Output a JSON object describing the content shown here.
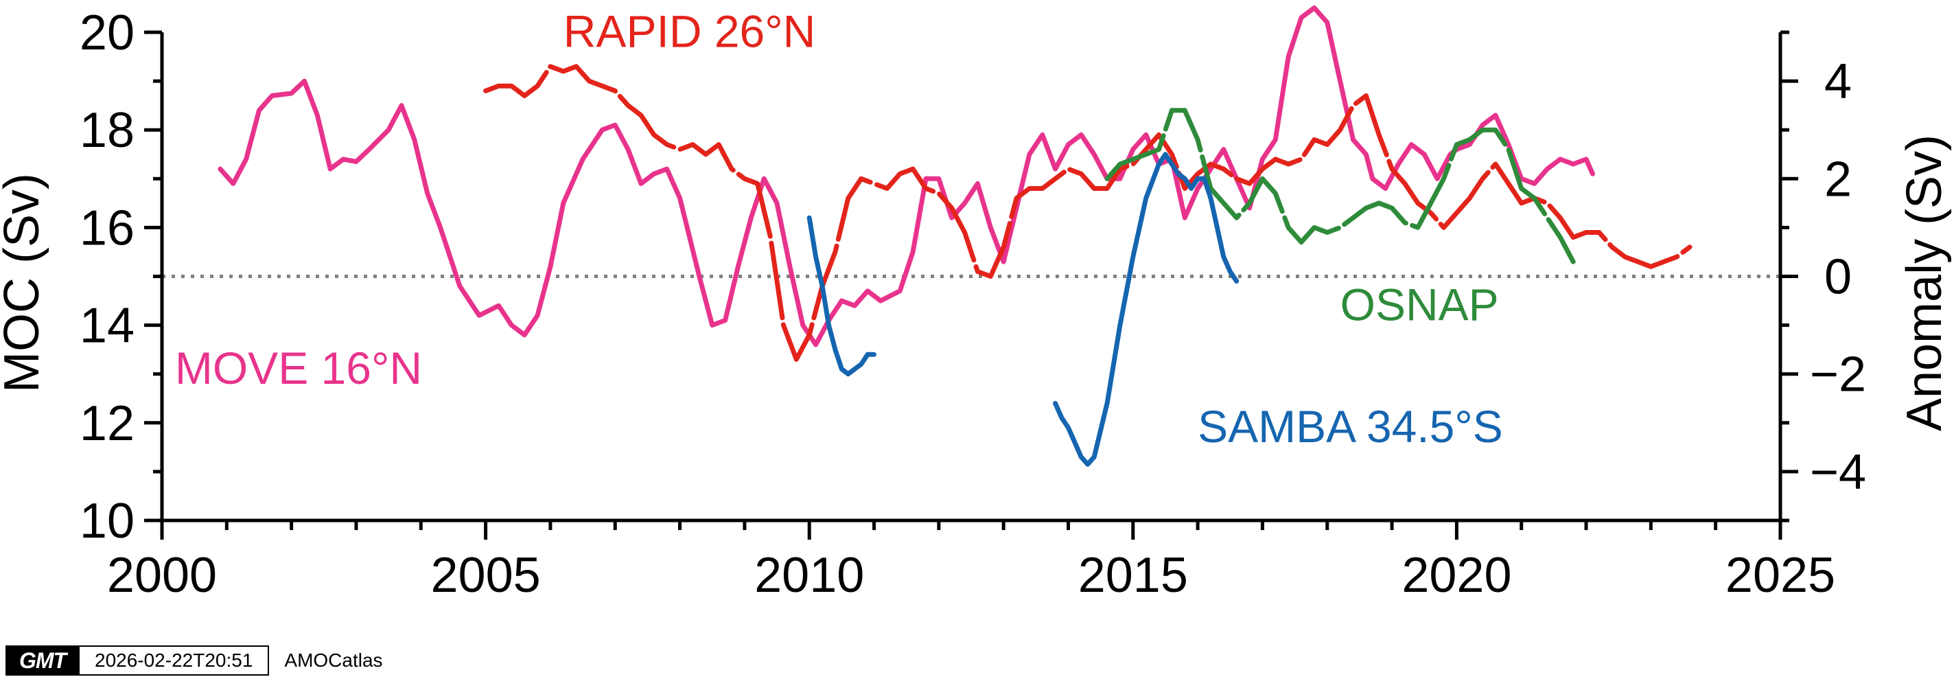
{
  "chart_data": {
    "type": "line",
    "xlabel": "",
    "ylabel": "MOC (Sv)",
    "y2label": "Anomaly (Sv)",
    "xlim": [
      2000,
      2025
    ],
    "ylim": [
      10,
      20
    ],
    "y2lim": [
      -5,
      5
    ],
    "x_ticks": [
      2000,
      2005,
      2010,
      2015,
      2020,
      2025
    ],
    "y_ticks": [
      10,
      12,
      14,
      16,
      18,
      20
    ],
    "y2_ticks": [
      {
        "value": -4,
        "label": "−4"
      },
      {
        "value": -2,
        "label": "−2"
      },
      {
        "value": 0,
        "label": "0"
      },
      {
        "value": 2,
        "label": "2"
      },
      {
        "value": 4,
        "label": "4"
      }
    ],
    "reference_line": {
      "axis": "y2",
      "value": 0,
      "style": "dotted",
      "color": "#808080"
    },
    "grid": false,
    "series": [
      {
        "name": "MOVE 16°N",
        "axis": "y2",
        "color": "#E8338C",
        "dash": "solid",
        "label_pos": [
          2000.2,
          -2.2
        ],
        "x": [
          2000.9,
          2001.1,
          2001.3,
          2001.5,
          2001.7,
          2002.0,
          2002.2,
          2002.4,
          2002.6,
          2002.8,
          2003.0,
          2003.2,
          2003.5,
          2003.7,
          2003.9,
          2004.1,
          2004.3,
          2004.6,
          2004.9,
          2005.2,
          2005.4,
          2005.6,
          2005.8,
          2006.0,
          2006.2,
          2006.5,
          2006.8,
          2007.0,
          2007.2,
          2007.4,
          2007.6,
          2007.8,
          2008.0,
          2008.3,
          2008.5,
          2008.7,
          2008.9,
          2009.1,
          2009.3,
          2009.5,
          2009.7,
          2009.9,
          2010.1,
          2010.3,
          2010.5,
          2010.7,
          2010.9,
          2011.1,
          2011.4,
          2011.6,
          2011.8,
          2012.0,
          2012.2,
          2012.4,
          2012.6,
          2012.8,
          2013.0,
          2013.2,
          2013.4,
          2013.6,
          2013.8,
          2014.0,
          2014.2,
          2014.4,
          2014.6,
          2014.8,
          2015.0,
          2015.2,
          2015.4,
          2015.6,
          2015.8,
          2016.0,
          2016.2,
          2016.4,
          2016.6,
          2016.8,
          2017.0,
          2017.2,
          2017.4,
          2017.6,
          2017.8,
          2018.0,
          2018.2,
          2018.4,
          2018.6,
          2018.7,
          2018.9,
          2019.1,
          2019.3,
          2019.5,
          2019.7,
          2019.9,
          2020.0,
          2020.2,
          2020.4,
          2020.6,
          2020.8,
          2021.0,
          2021.2,
          2021.4,
          2021.6,
          2021.8,
          2022.0,
          2022.1
        ],
        "y": [
          2.2,
          1.9,
          2.4,
          3.4,
          3.7,
          3.75,
          4.0,
          3.3,
          2.2,
          2.4,
          2.35,
          2.6,
          3.0,
          3.5,
          2.8,
          1.7,
          1.0,
          -0.2,
          -0.8,
          -0.6,
          -1.0,
          -1.2,
          -0.8,
          0.2,
          1.5,
          2.4,
          3.0,
          3.1,
          2.6,
          1.9,
          2.1,
          2.2,
          1.6,
          0.0,
          -1.0,
          -0.9,
          0.2,
          1.2,
          2.0,
          1.5,
          0.2,
          -1.0,
          -1.4,
          -0.9,
          -0.5,
          -0.6,
          -0.3,
          -0.5,
          -0.3,
          0.5,
          2.0,
          2.0,
          1.2,
          1.5,
          1.9,
          1.0,
          0.3,
          1.4,
          2.5,
          2.9,
          2.2,
          2.7,
          2.9,
          2.5,
          2.0,
          2.0,
          2.6,
          2.9,
          2.3,
          2.4,
          1.2,
          1.8,
          2.2,
          2.6,
          2.0,
          1.4,
          2.4,
          2.8,
          4.5,
          5.3,
          5.5,
          5.2,
          4.0,
          2.8,
          2.5,
          2.0,
          1.8,
          2.3,
          2.7,
          2.5,
          2.0,
          2.5,
          2.6,
          2.7,
          3.1,
          3.3,
          2.7,
          2.0,
          1.9,
          2.2,
          2.4,
          2.3,
          2.4,
          2.1
        ]
      },
      {
        "name": "RAPID 26°N",
        "axis": "y",
        "color": "#E3241B",
        "dash": "long-dash",
        "label_pos": [
          2006.2,
          19.7
        ],
        "x": [
          2005.0,
          2005.2,
          2005.4,
          2005.6,
          2005.8,
          2006.0,
          2006.2,
          2006.4,
          2006.6,
          2006.8,
          2007.0,
          2007.2,
          2007.4,
          2007.6,
          2007.8,
          2008.0,
          2008.2,
          2008.4,
          2008.6,
          2008.8,
          2009.0,
          2009.2,
          2009.4,
          2009.6,
          2009.8,
          2010.0,
          2010.2,
          2010.4,
          2010.6,
          2010.8,
          2011.0,
          2011.2,
          2011.4,
          2011.6,
          2011.8,
          2012.0,
          2012.2,
          2012.4,
          2012.6,
          2012.8,
          2013.0,
          2013.2,
          2013.4,
          2013.6,
          2013.8,
          2014.0,
          2014.2,
          2014.4,
          2014.6,
          2014.8,
          2015.0,
          2015.2,
          2015.4,
          2015.6,
          2015.8,
          2016.0,
          2016.2,
          2016.4,
          2016.6,
          2016.8,
          2017.0,
          2017.2,
          2017.4,
          2017.6,
          2017.8,
          2018.0,
          2018.2,
          2018.4,
          2018.6,
          2018.8,
          2019.0,
          2019.2,
          2019.4,
          2019.6,
          2019.8,
          2020.0,
          2020.2,
          2020.4,
          2020.6,
          2020.8,
          2021.0,
          2021.2,
          2021.4,
          2021.6,
          2021.8,
          2022.0,
          2022.2,
          2022.4,
          2022.6,
          2022.8,
          2023.0,
          2023.2,
          2023.4,
          2023.6
        ],
        "y": [
          18.8,
          18.9,
          18.9,
          18.7,
          18.9,
          19.3,
          19.2,
          19.3,
          19.0,
          18.9,
          18.8,
          18.5,
          18.3,
          17.9,
          17.7,
          17.6,
          17.7,
          17.5,
          17.7,
          17.2,
          17.0,
          16.9,
          15.8,
          14.0,
          13.3,
          13.8,
          14.8,
          15.5,
          16.6,
          17.0,
          16.9,
          16.8,
          17.1,
          17.2,
          16.8,
          16.7,
          16.4,
          15.9,
          15.1,
          15.0,
          15.6,
          16.6,
          16.8,
          16.8,
          17.0,
          17.2,
          17.1,
          16.8,
          16.8,
          17.2,
          17.3,
          17.6,
          17.9,
          17.5,
          16.8,
          17.1,
          17.3,
          17.2,
          17.0,
          16.9,
          17.2,
          17.4,
          17.3,
          17.4,
          17.8,
          17.7,
          18.0,
          18.5,
          18.7,
          17.9,
          17.2,
          16.9,
          16.5,
          16.3,
          16.0,
          16.3,
          16.6,
          17.0,
          17.3,
          16.9,
          16.5,
          16.6,
          16.5,
          16.2,
          15.8,
          15.9,
          15.9,
          15.6,
          15.4,
          15.3,
          15.2,
          15.3,
          15.4,
          15.6
        ]
      },
      {
        "name": "OSNAP",
        "axis": "y2",
        "color": "#2E8B3A",
        "dash": "long-dash",
        "label_pos": [
          2018.2,
          -0.9
        ],
        "x": [
          2014.6,
          2014.8,
          2015.0,
          2015.2,
          2015.4,
          2015.6,
          2015.8,
          2016.0,
          2016.2,
          2016.4,
          2016.6,
          2016.8,
          2017.0,
          2017.2,
          2017.4,
          2017.6,
          2017.8,
          2018.0,
          2018.2,
          2018.4,
          2018.6,
          2018.8,
          2019.0,
          2019.2,
          2019.4,
          2019.6,
          2019.8,
          2020.0,
          2020.2,
          2020.4,
          2020.6,
          2020.8,
          2021.0,
          2021.2,
          2021.4,
          2021.6,
          2021.8
        ],
        "y": [
          2.0,
          2.3,
          2.4,
          2.5,
          2.6,
          3.4,
          3.4,
          2.8,
          1.8,
          1.5,
          1.2,
          1.5,
          2.0,
          1.7,
          1.0,
          0.7,
          1.0,
          0.9,
          1.0,
          1.2,
          1.4,
          1.5,
          1.4,
          1.1,
          1.0,
          1.5,
          2.0,
          2.7,
          2.8,
          3.0,
          3.0,
          2.6,
          1.8,
          1.6,
          1.2,
          0.8,
          0.3
        ]
      },
      {
        "name": "SAMBA 34.5°S",
        "axis": "y2",
        "color": "#1565B0",
        "dash": "solid",
        "label_pos": [
          2016.0,
          -3.4
        ],
        "x": [
          2010.0,
          2010.1,
          2010.2,
          2010.3,
          2010.4,
          2010.5,
          2010.6,
          2010.7,
          2010.8,
          2010.9,
          2011.0,
          2013.8,
          2013.9,
          2014.0,
          2014.1,
          2014.2,
          2014.3,
          2014.4,
          2014.6,
          2014.8,
          2015.0,
          2015.2,
          2015.4,
          2015.5,
          2015.6,
          2015.7,
          2015.8,
          2015.9,
          2016.0,
          2016.1,
          2016.2,
          2016.3,
          2016.4,
          2016.5,
          2016.6
        ],
        "y": [
          1.2,
          0.4,
          -0.2,
          -1.0,
          -1.5,
          -1.9,
          -2.0,
          -1.9,
          -1.8,
          -1.6,
          -1.6,
          -2.6,
          -2.9,
          -3.1,
          -3.4,
          -3.7,
          -3.85,
          -3.7,
          -2.6,
          -1.0,
          0.4,
          1.6,
          2.3,
          2.5,
          2.3,
          2.1,
          2.0,
          1.8,
          2.0,
          2.0,
          1.6,
          1.0,
          0.4,
          0.1,
          -0.1
        ]
      }
    ]
  },
  "stamp": {
    "logo_text": "GMT",
    "timestamp": "2026-02-22T20:51",
    "source": "AMOCatlas"
  }
}
